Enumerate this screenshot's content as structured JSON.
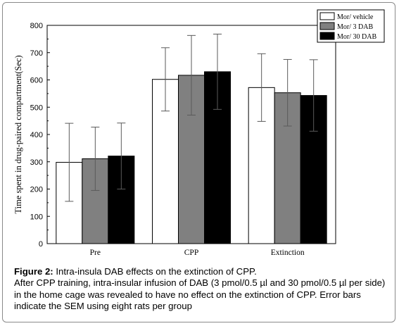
{
  "chart_data": {
    "type": "bar",
    "categories": [
      "Pre",
      "CPP",
      "Extinction"
    ],
    "series": [
      {
        "name": "Mor/ vehicle",
        "color": "#ffffff",
        "values": [
          298,
          602,
          572
        ],
        "sem": [
          143,
          116,
          124
        ]
      },
      {
        "name": "Mor/ 3 DAB",
        "color": "#808080",
        "values": [
          311,
          617,
          553
        ],
        "sem": [
          116,
          146,
          122
        ]
      },
      {
        "name": "Mor/ 30 DAB",
        "color": "#000000",
        "values": [
          321,
          630,
          543
        ],
        "sem": [
          121,
          138,
          131
        ]
      }
    ],
    "ylabel": "Time spent in drug-paired compartment(Sec)",
    "xlabel": "",
    "ylim": [
      0,
      800
    ],
    "yticks": [
      0,
      100,
      200,
      300,
      400,
      500,
      600,
      700,
      800
    ],
    "legend_position": "top-right",
    "grid": false
  },
  "caption": {
    "label": "Figure 2:",
    "title": "Intra-insula DAB effects on the extinction of CPP.",
    "body": "After CPP training, intra-insular infusion of DAB (3 pmol/0.5 µl and 30 pmol/0.5 µl per side) in the home cage was revealed to have no effect on the extinction of CPP. Error bars indicate the SEM using eight rats per group"
  }
}
